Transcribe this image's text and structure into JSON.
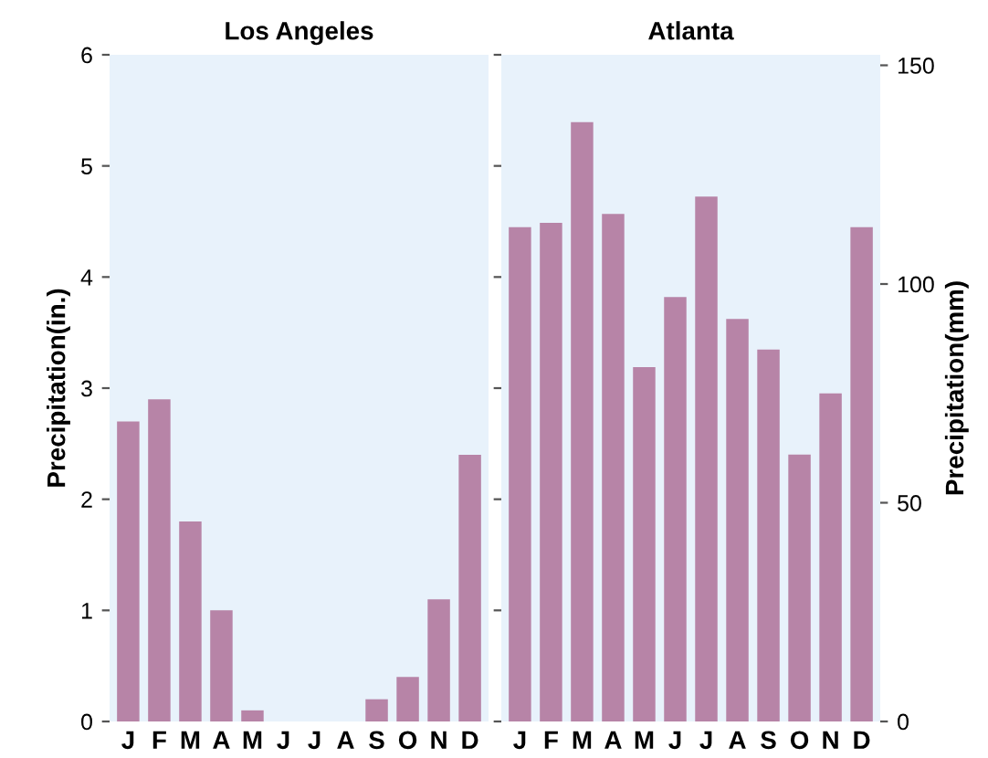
{
  "chart_data": [
    {
      "type": "bar",
      "title": "Los Angeles",
      "ylabel": "Precipitation(in.)",
      "categories": [
        "J",
        "F",
        "M",
        "A",
        "M",
        "J",
        "J",
        "A",
        "S",
        "O",
        "N",
        "D"
      ],
      "series": [
        {
          "color": "#b784a7",
          "values": [
            2.7,
            2.9,
            1.8,
            1.0,
            0.1,
            0,
            0,
            0,
            0.2,
            0.4,
            1.1,
            2.4
          ]
        }
      ],
      "ylim": [
        0,
        6
      ],
      "yticks": [
        0,
        1,
        2,
        3,
        4,
        5,
        6
      ],
      "grid": false
    },
    {
      "type": "bar",
      "title": "Atlanta",
      "y2label": "Precipitation(mm)",
      "categories": [
        "J",
        "F",
        "M",
        "A",
        "M",
        "J",
        "J",
        "A",
        "S",
        "O",
        "N",
        "D"
      ],
      "series": [
        {
          "color": "#b784a7",
          "axis": "y2",
          "values": [
            113,
            114,
            137,
            116,
            81,
            97,
            120,
            92,
            85,
            61,
            75,
            113
          ]
        }
      ],
      "y2lim": [
        0,
        152.4
      ],
      "y2ticks": [
        0,
        50,
        100,
        150
      ],
      "grid": false
    }
  ]
}
